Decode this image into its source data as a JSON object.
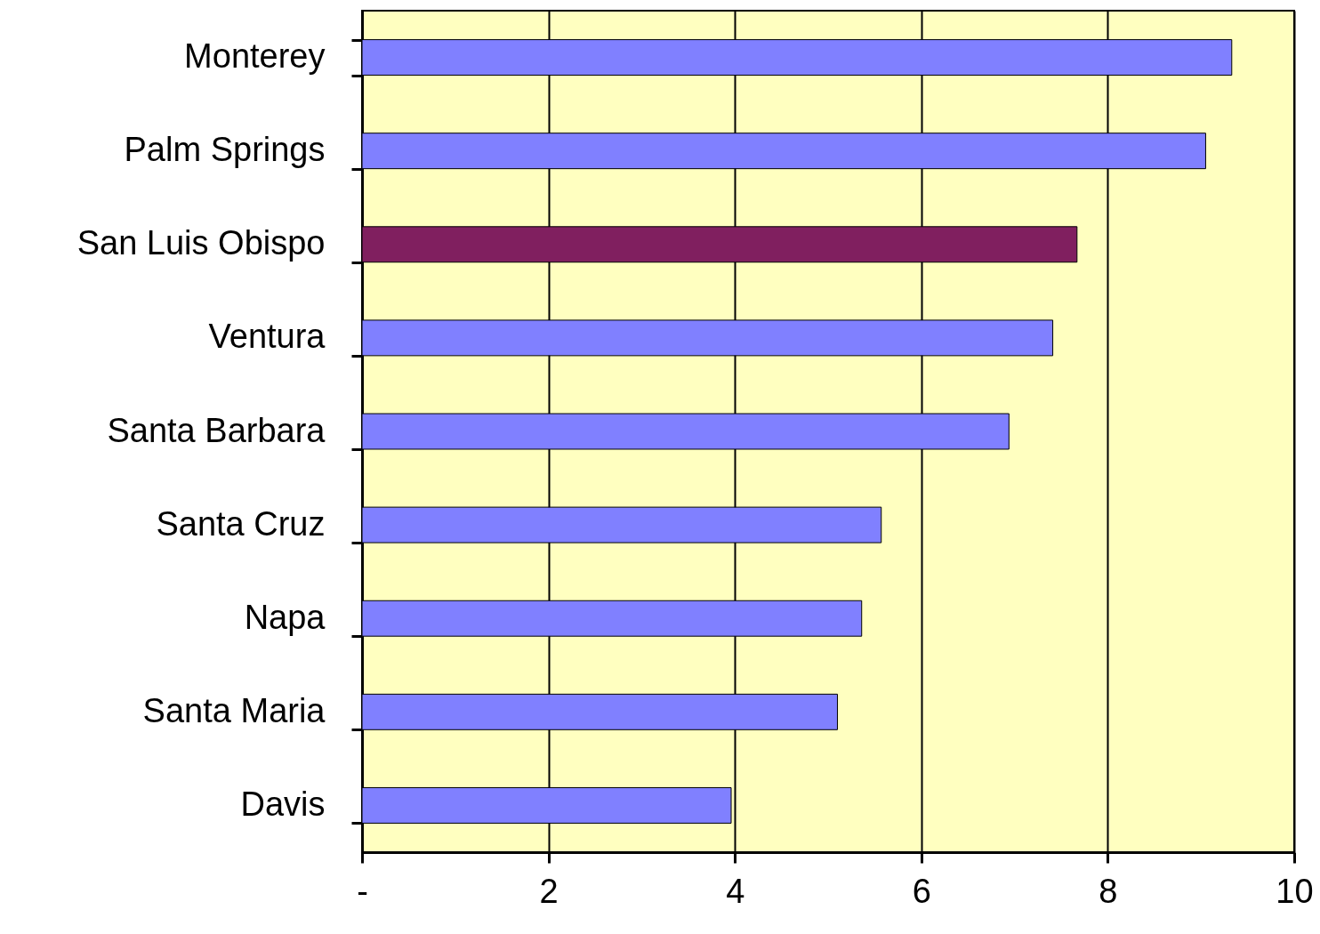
{
  "chart_data": {
    "type": "bar",
    "orientation": "horizontal",
    "categories": [
      "Monterey",
      "Palm Springs",
      "San Luis Obispo",
      "Ventura",
      "Santa Barbara",
      "Santa Cruz",
      "Napa",
      "Santa Maria",
      "Davis"
    ],
    "values": [
      9.33,
      9.05,
      7.67,
      7.41,
      6.94,
      5.57,
      5.36,
      5.1,
      3.96
    ],
    "colors": [
      "#8080ff",
      "#8080ff",
      "#801f5f",
      "#8080ff",
      "#8080ff",
      "#8080ff",
      "#8080ff",
      "#8080ff",
      "#8080ff"
    ],
    "xlim": [
      0,
      10
    ],
    "xticks": [
      {
        "value": 0,
        "label": "-"
      },
      2,
      4,
      6,
      8,
      10
    ],
    "grid": "x"
  }
}
